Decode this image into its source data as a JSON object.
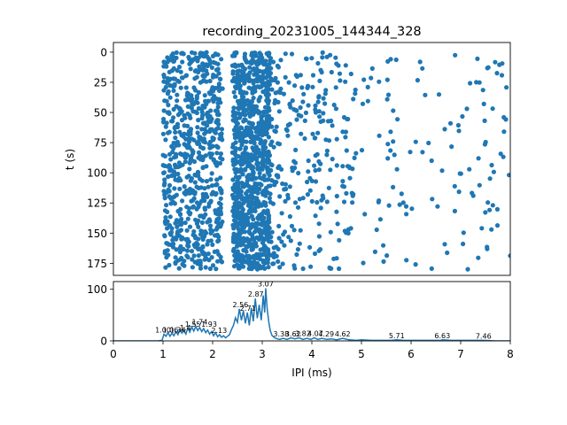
{
  "chart_data": [
    {
      "type": "scatter",
      "title": "recording_20231005_144344_328",
      "xlabel": "",
      "ylabel": "t (s)",
      "xlim": [
        0,
        8
      ],
      "ylim": [
        185,
        -8
      ],
      "y_inverted": true,
      "yticks": [
        "0",
        "25",
        "50",
        "75",
        "100",
        "125",
        "150",
        "175"
      ],
      "marker_color": "#1f77b4",
      "marker": "circle",
      "description": "Raster of inter-pulse intervals over time; dense bands near 1.0–2.2 ms and 2.4–3.1 ms, sparse points 3.1–8 ms.",
      "density_bands": [
        {
          "x_range": [
            1.0,
            2.2
          ],
          "density": "medium-high"
        },
        {
          "x_range": [
            2.4,
            3.15
          ],
          "density": "high"
        },
        {
          "x_range": [
            3.15,
            4.8
          ],
          "density": "medium"
        },
        {
          "x_range": [
            4.8,
            8.0
          ],
          "density": "low"
        }
      ]
    },
    {
      "type": "line",
      "xlabel": "IPI (ms)",
      "ylabel": "",
      "xlim": [
        0,
        8
      ],
      "ylim": [
        0,
        115
      ],
      "xticks": [
        "0",
        "1",
        "2",
        "3",
        "4",
        "5",
        "6",
        "7",
        "8"
      ],
      "yticks": [
        "0",
        "100"
      ],
      "line_color": "#1f77b4",
      "histogram": [
        [
          0,
          0
        ],
        [
          0.9,
          0
        ],
        [
          0.98,
          1
        ],
        [
          1.02,
          13
        ],
        [
          1.06,
          9
        ],
        [
          1.1,
          16
        ],
        [
          1.14,
          9
        ],
        [
          1.18,
          15
        ],
        [
          1.22,
          10
        ],
        [
          1.26,
          18
        ],
        [
          1.3,
          12
        ],
        [
          1.34,
          22
        ],
        [
          1.38,
          15
        ],
        [
          1.42,
          20
        ],
        [
          1.46,
          13
        ],
        [
          1.5,
          25
        ],
        [
          1.54,
          17
        ],
        [
          1.58,
          27
        ],
        [
          1.62,
          19
        ],
        [
          1.66,
          28
        ],
        [
          1.7,
          20
        ],
        [
          1.74,
          26
        ],
        [
          1.78,
          18
        ],
        [
          1.82,
          24
        ],
        [
          1.86,
          16
        ],
        [
          1.9,
          21
        ],
        [
          1.94,
          13
        ],
        [
          1.98,
          18
        ],
        [
          2.02,
          10
        ],
        [
          2.06,
          16
        ],
        [
          2.1,
          8
        ],
        [
          2.14,
          12
        ],
        [
          2.18,
          7
        ],
        [
          2.22,
          10
        ],
        [
          2.26,
          6
        ],
        [
          2.3,
          9
        ],
        [
          2.34,
          12
        ],
        [
          2.38,
          22
        ],
        [
          2.42,
          30
        ],
        [
          2.46,
          45
        ],
        [
          2.5,
          36
        ],
        [
          2.54,
          62
        ],
        [
          2.58,
          40
        ],
        [
          2.62,
          58
        ],
        [
          2.66,
          34
        ],
        [
          2.7,
          55
        ],
        [
          2.74,
          30
        ],
        [
          2.78,
          64
        ],
        [
          2.82,
          38
        ],
        [
          2.86,
          82
        ],
        [
          2.9,
          44
        ],
        [
          2.94,
          70
        ],
        [
          2.98,
          40
        ],
        [
          3.02,
          88
        ],
        [
          3.05,
          55
        ],
        [
          3.07,
          102
        ],
        [
          3.1,
          62
        ],
        [
          3.13,
          38
        ],
        [
          3.16,
          20
        ],
        [
          3.2,
          10
        ],
        [
          3.25,
          6
        ],
        [
          3.3,
          4
        ],
        [
          3.35,
          3
        ],
        [
          3.42,
          5
        ],
        [
          3.5,
          3
        ],
        [
          3.58,
          6
        ],
        [
          3.66,
          4
        ],
        [
          3.74,
          6
        ],
        [
          3.82,
          3
        ],
        [
          3.9,
          5
        ],
        [
          3.98,
          3
        ],
        [
          4.05,
          6
        ],
        [
          4.12,
          3
        ],
        [
          4.2,
          5
        ],
        [
          4.3,
          3
        ],
        [
          4.4,
          4
        ],
        [
          4.5,
          2
        ],
        [
          4.62,
          5
        ],
        [
          4.75,
          2
        ],
        [
          4.9,
          1
        ],
        [
          5.0,
          2
        ],
        [
          5.2,
          1
        ],
        [
          5.4,
          1
        ],
        [
          5.6,
          1
        ],
        [
          5.71,
          2
        ],
        [
          5.85,
          1
        ],
        [
          6.0,
          1
        ],
        [
          6.2,
          1
        ],
        [
          6.4,
          1
        ],
        [
          6.6,
          1
        ],
        [
          6.63,
          2
        ],
        [
          6.8,
          1
        ],
        [
          7.0,
          1
        ],
        [
          7.2,
          1
        ],
        [
          7.46,
          1
        ],
        [
          7.7,
          0
        ],
        [
          8.0,
          0
        ]
      ],
      "peak_labels": [
        {
          "x": 1.0,
          "y": 13,
          "text": "1.00"
        },
        {
          "x": 1.15,
          "y": 13,
          "text": "1.06"
        },
        {
          "x": 1.3,
          "y": 13,
          "text": "1.34"
        },
        {
          "x": 1.45,
          "y": 17,
          "text": "1.4"
        },
        {
          "x": 1.6,
          "y": 24,
          "text": "1.55"
        },
        {
          "x": 1.74,
          "y": 28,
          "text": "1.74"
        },
        {
          "x": 1.93,
          "y": 24,
          "text": "1.93"
        },
        {
          "x": 2.13,
          "y": 12,
          "text": "2.13"
        },
        {
          "x": 2.56,
          "y": 62,
          "text": "2.56"
        },
        {
          "x": 2.71,
          "y": 55,
          "text": "2.71"
        },
        {
          "x": 2.87,
          "y": 82,
          "text": "2.87"
        },
        {
          "x": 3.07,
          "y": 102,
          "text": "3.07"
        },
        {
          "x": 3.38,
          "y": 5,
          "text": "3.38"
        },
        {
          "x": 3.62,
          "y": 5,
          "text": "3.62"
        },
        {
          "x": 3.82,
          "y": 6,
          "text": "3.82"
        },
        {
          "x": 4.07,
          "y": 6,
          "text": "4.07"
        },
        {
          "x": 4.29,
          "y": 5,
          "text": "4.29"
        },
        {
          "x": 4.62,
          "y": 5,
          "text": "4.62"
        },
        {
          "x": 5.71,
          "y": 2,
          "text": "5.71"
        },
        {
          "x": 6.63,
          "y": 2,
          "text": "6.63"
        },
        {
          "x": 7.46,
          "y": 1,
          "text": "7.46"
        }
      ]
    }
  ]
}
